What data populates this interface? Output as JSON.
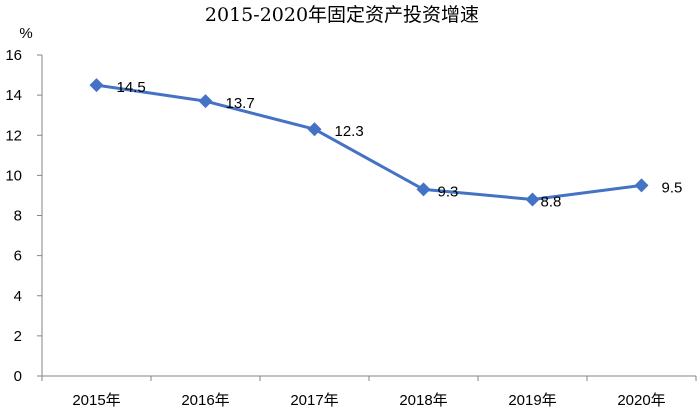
{
  "chart_data": {
    "type": "line",
    "title": "2015-2020年固定资产投资增速",
    "ylabel": "%",
    "xlabel": "",
    "categories": [
      "2015年",
      "2016年",
      "2017年",
      "2018年",
      "2019年",
      "2020年"
    ],
    "series": [
      {
        "values": [
          14.5,
          13.7,
          12.3,
          9.3,
          8.8,
          9.5
        ],
        "labels": [
          "14.5",
          "13.7",
          "12.3",
          "9.3",
          "8.8",
          "9.5"
        ]
      }
    ],
    "ylim": [
      0,
      16
    ],
    "yticks": [
      0,
      2,
      4,
      6,
      8,
      10,
      12,
      14,
      16
    ],
    "grid": false,
    "legend": "none",
    "marker": "diamond",
    "line_color": "#4472C4",
    "marker_color": "#4472C4"
  }
}
